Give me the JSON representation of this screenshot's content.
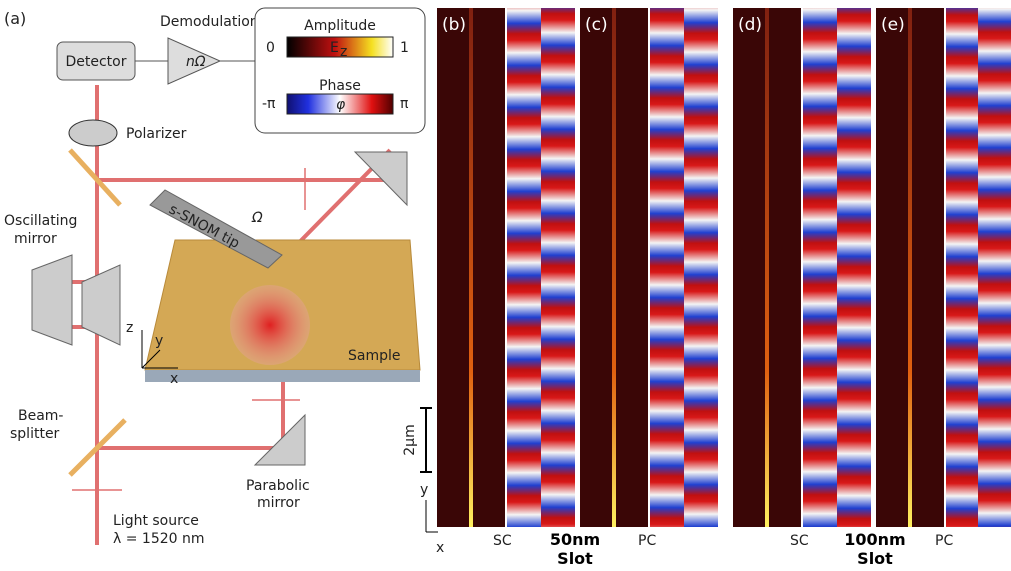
{
  "setup": {
    "panel_label": "(a)",
    "demodulation": "Demodulation",
    "detector": "Detector",
    "demod_factor": "nΩ",
    "legend": {
      "amplitude_title": "Amplitude",
      "amp_min": "0",
      "field_symbol": "E",
      "field_subscript": "z",
      "amp_max": "1",
      "phase_title": "Phase",
      "phase_min": "-π",
      "phase_symbol": "φ",
      "phase_max": "π"
    },
    "polarizer": "Polarizer",
    "oscillating_mirror": [
      "Oscillating",
      "mirror"
    ],
    "tip": "s-SNOM tip",
    "tip_freq": "Ω",
    "axes": {
      "z": "z",
      "y": "y",
      "x": "x"
    },
    "sample": "Sample",
    "beam_splitter": [
      "Beam-",
      "splitter"
    ],
    "parabolic_mirror": [
      "Parabolic",
      "mirror"
    ],
    "light_source": [
      "Light source",
      "λ = 1520 nm"
    ]
  },
  "panels": {
    "labels": [
      "(b)",
      "(c)",
      "(d)",
      "(e)"
    ],
    "sc_left": "SC",
    "pc_left": "PC",
    "slot_left": [
      "50nm",
      "Slot"
    ],
    "sc_right": "SC",
    "pc_right": "PC",
    "slot_right": [
      "100nm",
      "Slot"
    ],
    "scale_bar": "2μm",
    "axis_y": "y",
    "axis_x": "x"
  }
}
